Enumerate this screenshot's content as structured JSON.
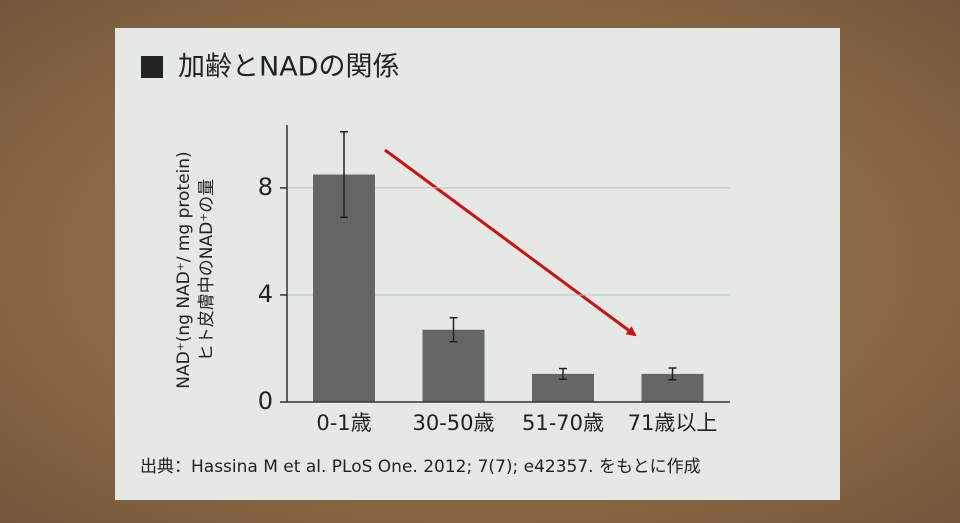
{
  "chart_data": {
    "type": "bar",
    "title": "加齢とNADの関係",
    "y_label": [
      "NAD⁺(ng NAD⁺/ mg protein)",
      "ヒト皮膚中のNAD⁺の量"
    ],
    "categories": [
      "0-1歳",
      "30-50歳",
      "51-70歳",
      "71歳以上"
    ],
    "values": [
      8.5,
      2.7,
      1.05,
      1.05
    ],
    "errors": [
      1.6,
      0.45,
      0.2,
      0.22
    ],
    "color": "#666666",
    "ylim": [
      0,
      10.35
    ],
    "yticks": [
      0,
      4,
      8
    ],
    "grid": true,
    "source": "出典：Hassina M et al. PLoS One. 2012; 7(7); e42357. をもとに作成"
  }
}
